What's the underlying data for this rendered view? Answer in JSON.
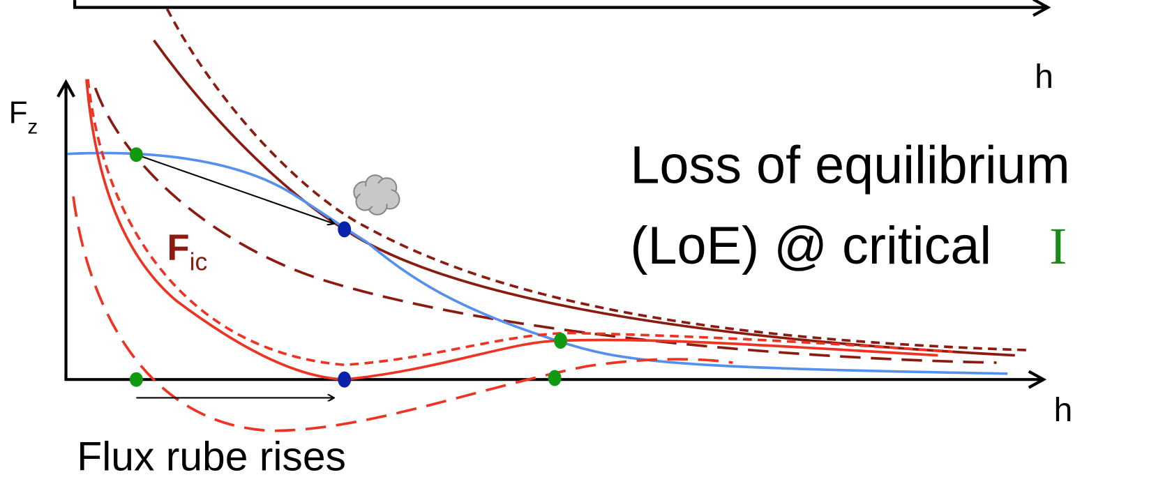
{
  "axes": {
    "upper_x_label": "h",
    "lower_x_label": "h",
    "y_label": {
      "main": "F",
      "subscript": "z"
    }
  },
  "curve_label": {
    "main": "F",
    "subscript": "ic"
  },
  "annotation": {
    "lines": [
      "Loss of equilibrium",
      "(LoE) @ critical"
    ],
    "symbol": "I"
  },
  "caption": "Flux rube rises"
}
